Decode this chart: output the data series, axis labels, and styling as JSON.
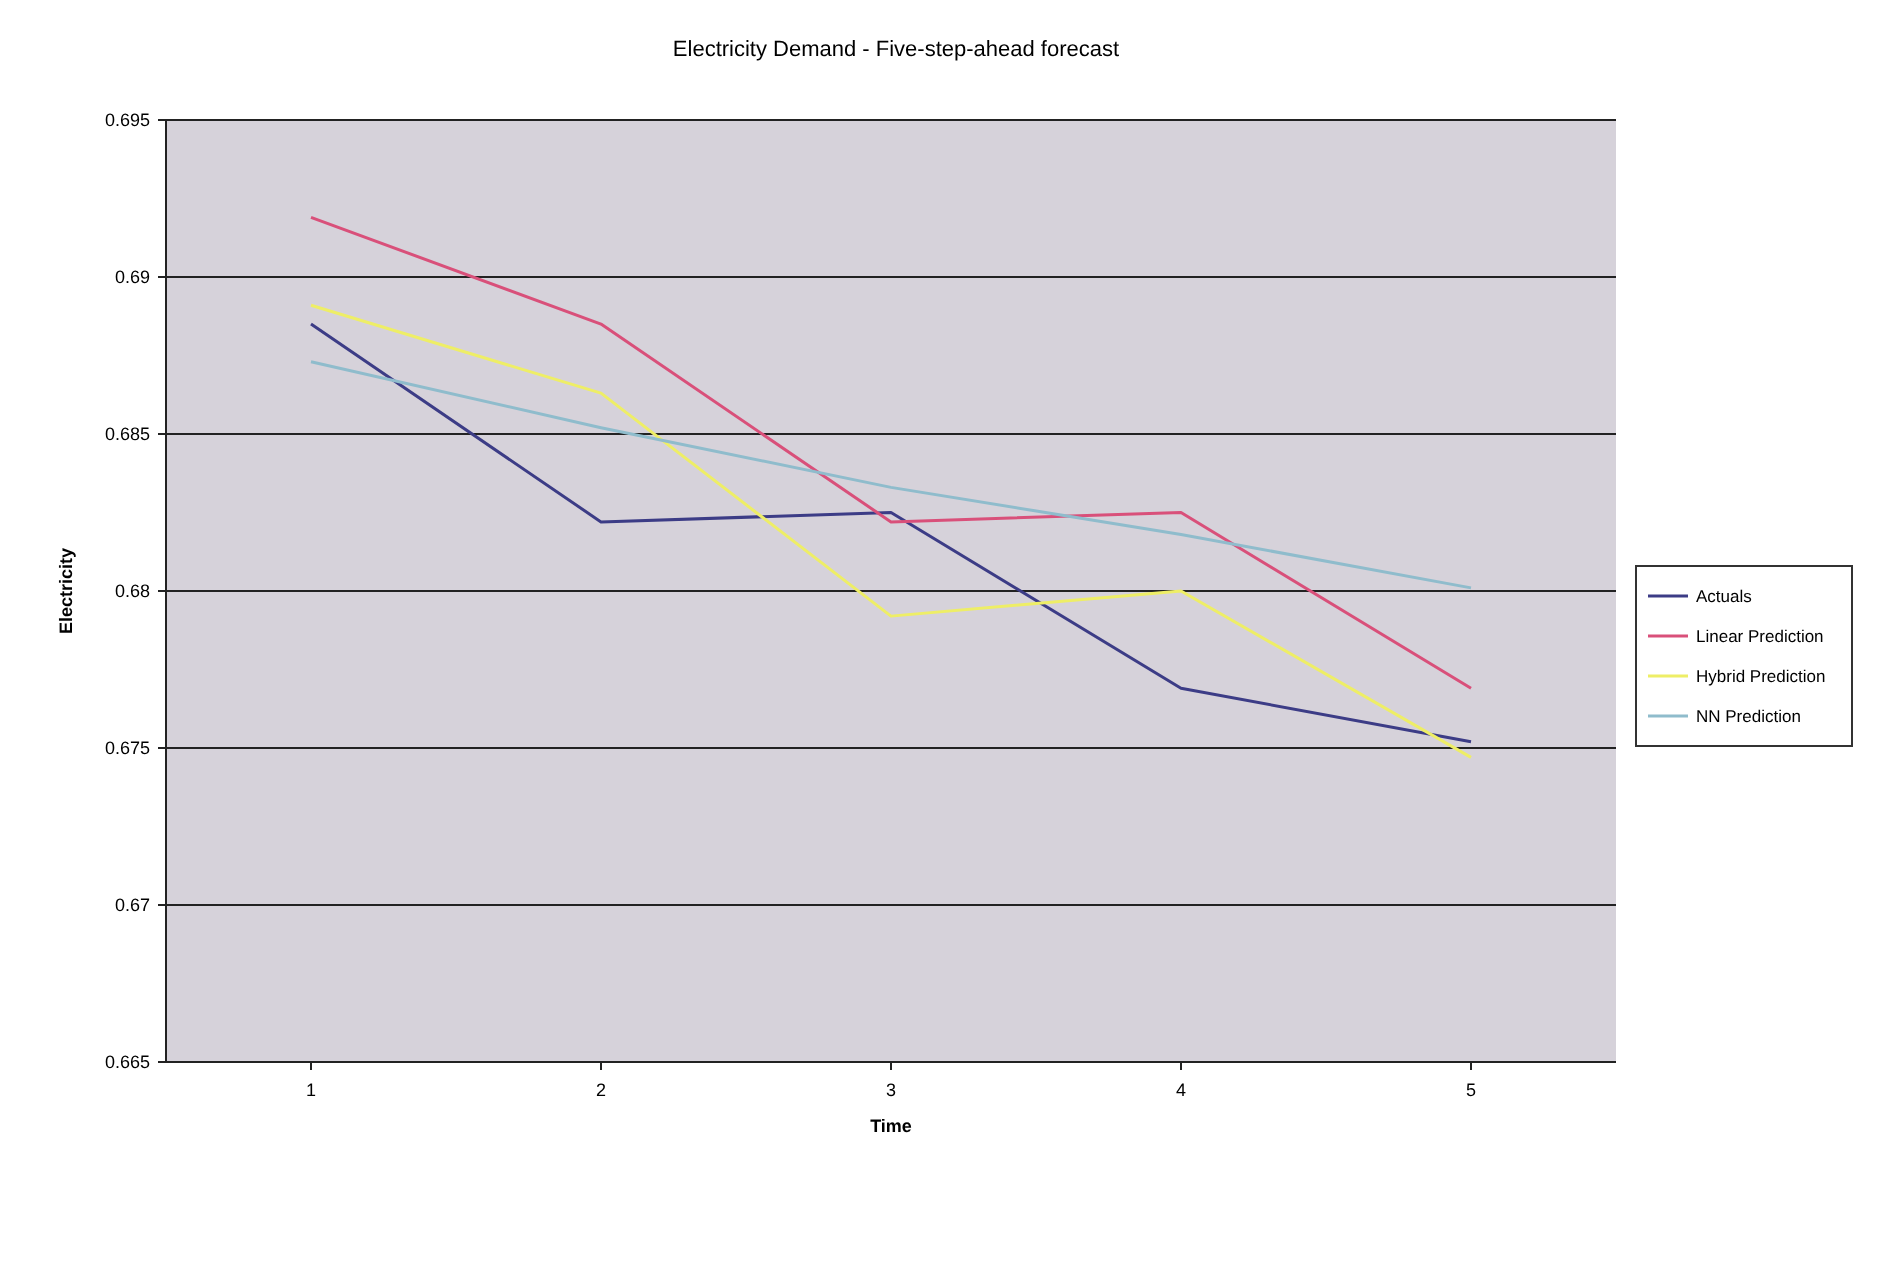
{
  "chart_data": {
    "type": "line",
    "title": "Electricity Demand - Five-step-ahead forecast",
    "xlabel": "Time",
    "ylabel": "Electricity",
    "categories": [
      "1",
      "2",
      "3",
      "4",
      "5"
    ],
    "series": [
      {
        "name": "Actuals",
        "color": "#3c3c86",
        "values": [
          0.6885,
          0.6822,
          0.6825,
          0.6769,
          0.6752
        ]
      },
      {
        "name": "Linear Prediction",
        "color": "#d9507a",
        "values": [
          0.6919,
          0.6885,
          0.6822,
          0.6825,
          0.6769
        ]
      },
      {
        "name": "Hybrid Prediction",
        "color": "#eeee66",
        "values": [
          0.6891,
          0.6863,
          0.6792,
          0.68,
          0.6747
        ]
      },
      {
        "name": "NN Prediction",
        "color": "#8fbccc",
        "values": [
          0.6873,
          0.6852,
          0.6833,
          0.6818,
          0.6801
        ]
      }
    ],
    "ylim": [
      0.665,
      0.695
    ],
    "yticks": [
      0.665,
      0.67,
      0.675,
      0.68,
      0.685,
      0.69,
      0.695
    ],
    "grid": "y",
    "legend": "right",
    "marker": "none",
    "line_style": "solid"
  }
}
